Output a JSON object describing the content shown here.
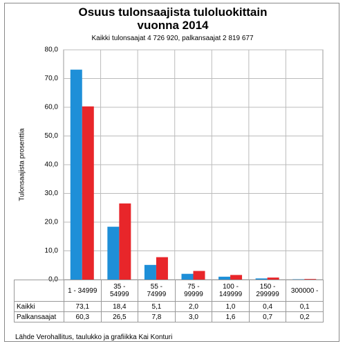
{
  "chart_data": {
    "type": "bar",
    "title": "Osuus tulonsaajista tuloluokittain vuonna 2014",
    "subtitle": "Kaikki tulonsaajat 4 726 920, palkansaajat 2 819 677",
    "y_label": "Tulonsaajista prosenttia",
    "source": "Lähde Verohallitus, taulukko ja grafiikka Kai Konturi",
    "categories": [
      "1 - 34999",
      "35 - 54999",
      "55 - 74999",
      "75 - 99999",
      "100 - 149999",
      "150 - 299999",
      "300000 -"
    ],
    "series": [
      {
        "name": "Kaikki",
        "color": "#1e8fd8",
        "values": [
          73.1,
          18.4,
          5.1,
          2.0,
          1.0,
          0.4,
          0.1
        ],
        "value_labels": [
          "73,1",
          "18,4",
          "5,1",
          "2,0",
          "1,0",
          "0,4",
          "0,1"
        ]
      },
      {
        "name": "Palkansaajat",
        "color": "#e8262a",
        "values": [
          60.3,
          26.5,
          7.8,
          3.0,
          1.6,
          0.7,
          0.2
        ],
        "value_labels": [
          "60,3",
          "26,5",
          "7,8",
          "3,0",
          "1,6",
          "0,7",
          "0,2"
        ]
      }
    ],
    "ylim": [
      0,
      80
    ],
    "yticks": [
      {
        "value": 0,
        "label": "0,0"
      },
      {
        "value": 10,
        "label": "10,0"
      },
      {
        "value": 20,
        "label": "20,0"
      },
      {
        "value": 30,
        "label": "30,0"
      },
      {
        "value": 40,
        "label": "40,0"
      },
      {
        "value": 50,
        "label": "50,0"
      },
      {
        "value": 60,
        "label": "60,0"
      },
      {
        "value": 70,
        "label": "70,0"
      },
      {
        "value": 80,
        "label": "80,0"
      }
    ],
    "grid": true
  }
}
